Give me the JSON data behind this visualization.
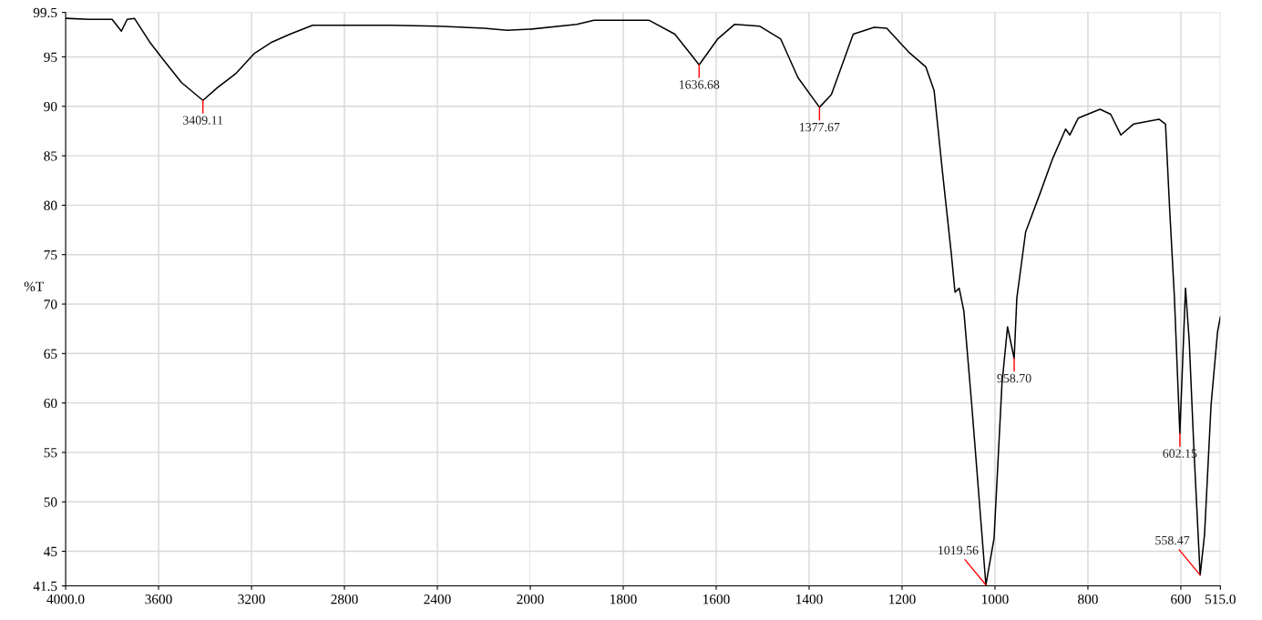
{
  "chart_data": [
    {
      "type": "line",
      "ylabel": "%T",
      "x": [
        4000,
        3900,
        3800,
        3760,
        3735,
        3704,
        3638,
        3579,
        3501,
        3409.11,
        3346,
        3268,
        3190,
        3112,
        3034,
        2937,
        2800,
        2600,
        2400,
        2200,
        2100,
        2000
      ],
      "series": [
        {
          "color": "#000000",
          "values": [
            98.9,
            98.8,
            98.8,
            97.6,
            98.8,
            98.9,
            96.5,
            94.7,
            92.4,
            90.6,
            91.9,
            93.3,
            95.3,
            96.5,
            97.3,
            98.2,
            98.2,
            98.2,
            98.1,
            97.9,
            97.7,
            97.8
          ]
        }
      ],
      "xlim": [
        4000,
        2000
      ],
      "ylim": [
        41.5,
        99.5
      ],
      "xticks": [
        {
          "value": 4000,
          "label": "4000.0"
        },
        3600,
        3200,
        2800,
        2400,
        2000
      ],
      "yticks": [
        41.5,
        45,
        50,
        55,
        60,
        65,
        70,
        75,
        80,
        85,
        90,
        95,
        99.5
      ],
      "grid": true,
      "marker": "none",
      "line_style": "solid",
      "annotations": [
        {
          "text": "3409.11",
          "x": 3409.11,
          "y": 90.6
        }
      ]
    },
    {
      "type": "line",
      "x": [
        2000,
        1900,
        1863,
        1744,
        1689,
        1636.68,
        1597,
        1560,
        1506,
        1461,
        1424,
        1377.67,
        1352,
        1305,
        1260,
        1233,
        1186,
        1149,
        1131,
        1114,
        1094,
        1086,
        1077,
        1067,
        1050,
        1019.56,
        1002,
        985,
        973,
        958.7,
        953,
        934,
        903,
        876,
        848,
        839,
        821,
        774,
        751,
        729,
        702,
        647,
        633,
        624,
        614,
        602.15,
        590,
        582,
        572,
        558.47,
        549,
        535,
        521,
        515
      ],
      "series": [
        {
          "color": "#000000",
          "values": [
            97.8,
            98.3,
            98.7,
            98.7,
            97.3,
            94.2,
            96.8,
            98.3,
            98.1,
            96.8,
            92.9,
            89.9,
            91.2,
            97.3,
            98.0,
            97.9,
            95.5,
            94.0,
            91.6,
            83.8,
            75.1,
            71.2,
            71.6,
            69.3,
            59.8,
            41.6,
            46.3,
            61.9,
            67.7,
            64.5,
            70.6,
            77.3,
            81.2,
            84.7,
            87.7,
            87.1,
            88.8,
            89.7,
            89.2,
            87.1,
            88.2,
            88.7,
            88.2,
            79.5,
            70.8,
            56.9,
            71.6,
            66.3,
            55.4,
            42.6,
            46.7,
            59.8,
            67.2,
            68.7
          ]
        }
      ],
      "xlim": [
        2000,
        515
      ],
      "ylim": [
        41.5,
        99.5
      ],
      "xticks": [
        1800,
        1600,
        1400,
        1200,
        1000,
        800,
        600,
        {
          "value": 515,
          "label": "515.0"
        }
      ],
      "tick_labels": "x",
      "grid": true,
      "marker": "none",
      "line_style": "solid",
      "annotations": [
        {
          "text": "1636.68",
          "x": 1636.68,
          "y": 94.2
        },
        {
          "text": "1377.67",
          "x": 1377.67,
          "y": 89.9
        },
        {
          "text": "1019.56",
          "x": 1019.56,
          "y": 41.6
        },
        {
          "text": "958.70",
          "x": 958.7,
          "y": 64.5
        },
        {
          "text": "602.15",
          "x": 602.15,
          "y": 56.9
        },
        {
          "text": "558.47",
          "x": 558.47,
          "y": 42.6
        }
      ]
    }
  ]
}
